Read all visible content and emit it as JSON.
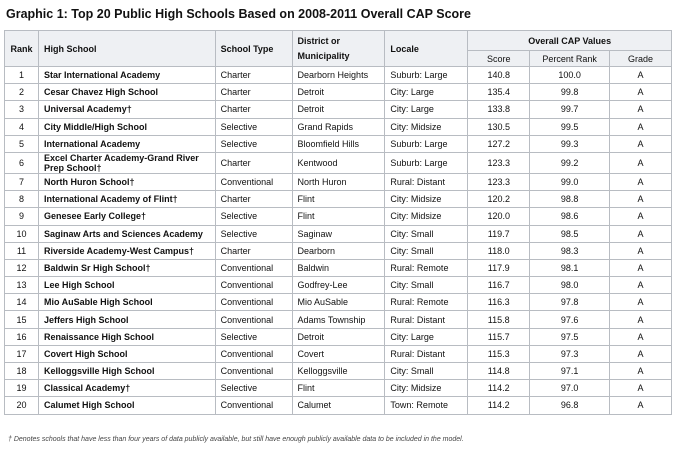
{
  "title": "Graphic 1: Top 20 Public High Schools Based on 2008-2011 Overall CAP Score",
  "table": {
    "headers": [
      "Rank",
      "High School",
      "School Type",
      "District or Municipality",
      "Locale"
    ],
    "group_header": "Overall CAP Values",
    "sub_headers": [
      "Score",
      "Percent Rank",
      "Grade"
    ],
    "rows": [
      [
        "1",
        "Star International Academy",
        "Charter",
        "Dearborn Heights",
        "Suburb: Large",
        "140.8",
        "100.0",
        "A"
      ],
      [
        "2",
        "Cesar Chavez High School",
        "Charter",
        "Detroit",
        "City: Large",
        "135.4",
        "99.8",
        "A"
      ],
      [
        "3",
        "Universal Academy†",
        "Charter",
        "Detroit",
        "City: Large",
        "133.8",
        "99.7",
        "A"
      ],
      [
        "4",
        "City Middle/High School",
        "Selective",
        "Grand Rapids",
        "City: Midsize",
        "130.5",
        "99.5",
        "A"
      ],
      [
        "5",
        "International Academy",
        "Selective",
        "Bloomfield Hills",
        "Suburb: Large",
        "127.2",
        "99.3",
        "A"
      ],
      [
        "6",
        "Excel Charter Academy-Grand River Prep School†",
        "Charter",
        "Kentwood",
        "Suburb: Large",
        "123.3",
        "99.2",
        "A"
      ],
      [
        "7",
        "North Huron School†",
        "Conventional",
        "North Huron",
        "Rural: Distant",
        "123.3",
        "99.0",
        "A"
      ],
      [
        "8",
        "International Academy of Flint†",
        "Charter",
        "Flint",
        "City: Midsize",
        "120.2",
        "98.8",
        "A"
      ],
      [
        "9",
        "Genesee Early College†",
        "Selective",
        "Flint",
        "City: Midsize",
        "120.0",
        "98.6",
        "A"
      ],
      [
        "10",
        "Saginaw Arts and Sciences Academy",
        "Selective",
        "Saginaw",
        "City: Small",
        "119.7",
        "98.5",
        "A"
      ],
      [
        "11",
        "Riverside Academy-West Campus†",
        "Charter",
        "Dearborn",
        "City: Small",
        "118.0",
        "98.3",
        "A"
      ],
      [
        "12",
        "Baldwin Sr High School†",
        "Conventional",
        "Baldwin",
        "Rural: Remote",
        "117.9",
        "98.1",
        "A"
      ],
      [
        "13",
        "Lee High School",
        "Conventional",
        "Godfrey-Lee",
        "City: Small",
        "116.7",
        "98.0",
        "A"
      ],
      [
        "14",
        "Mio AuSable High School",
        "Conventional",
        "Mio AuSable",
        "Rural: Remote",
        "116.3",
        "97.8",
        "A"
      ],
      [
        "15",
        "Jeffers High School",
        "Conventional",
        "Adams Township",
        "Rural: Distant",
        "115.8",
        "97.6",
        "A"
      ],
      [
        "16",
        "Renaissance High School",
        "Selective",
        "Detroit",
        "City: Large",
        "115.7",
        "97.5",
        "A"
      ],
      [
        "17",
        "Covert High School",
        "Conventional",
        "Covert",
        "Rural: Distant",
        "115.3",
        "97.3",
        "A"
      ],
      [
        "18",
        "Kelloggsville High School",
        "Conventional",
        "Kelloggsville",
        "City: Small",
        "114.8",
        "97.1",
        "A"
      ],
      [
        "19",
        "Classical Academy†",
        "Selective",
        "Flint",
        "City: Midsize",
        "114.2",
        "97.0",
        "A"
      ],
      [
        "20",
        "Calumet High School",
        "Conventional",
        "Calumet",
        "Town: Remote",
        "114.2",
        "96.8",
        "A"
      ]
    ]
  },
  "footnote": "† Denotes schools that have less than four years of data publicly available, but still have enough publicly available data to be included in the model."
}
